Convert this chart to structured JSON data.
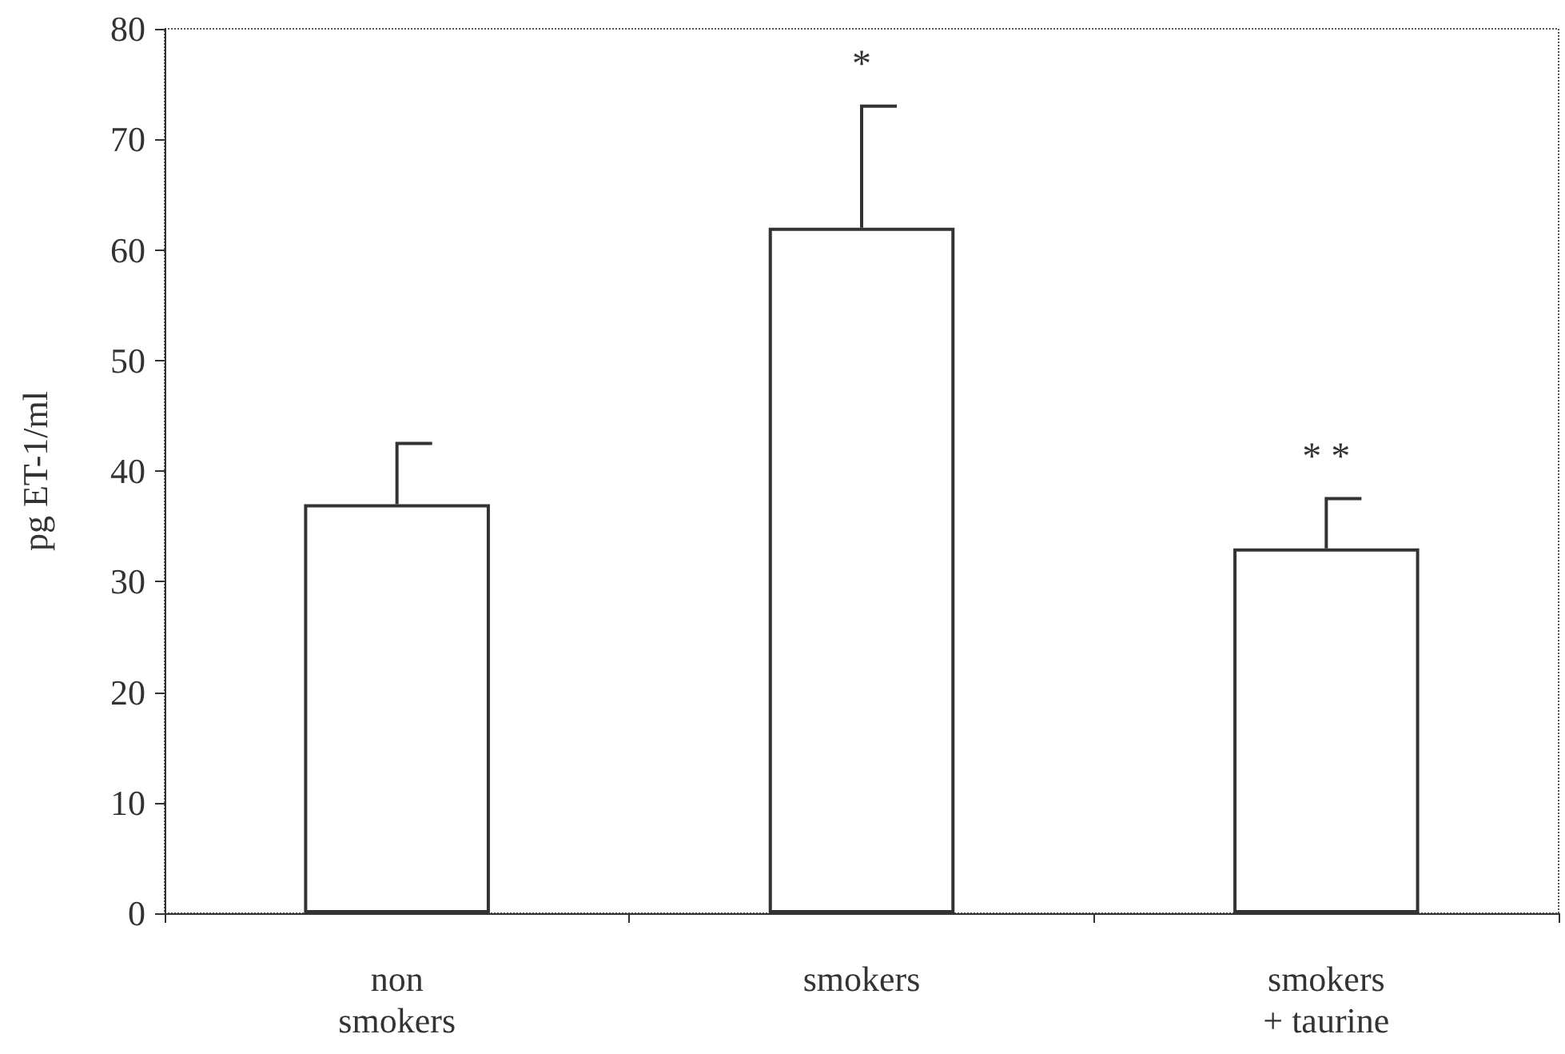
{
  "chart_data": {
    "type": "bar",
    "ylabel": "pg ET-1/ml",
    "categories": [
      "non\nsmokers",
      "smokers",
      "smokers\n+ taurine"
    ],
    "values": [
      37,
      62,
      33
    ],
    "errors": [
      [
        37,
        42.5
      ],
      [
        62,
        73
      ],
      [
        33,
        37.5
      ]
    ],
    "color": "#ffffff",
    "ylim": [
      0,
      80
    ],
    "yticks": [
      0,
      10,
      20,
      30,
      40,
      50,
      60,
      70,
      80
    ],
    "grid": false,
    "annotations": [
      {
        "text": "*",
        "x": "smokers",
        "y": 73
      },
      {
        "text": "* *",
        "x": "smokers\n+ taurine",
        "y": 37.5
      }
    ]
  }
}
